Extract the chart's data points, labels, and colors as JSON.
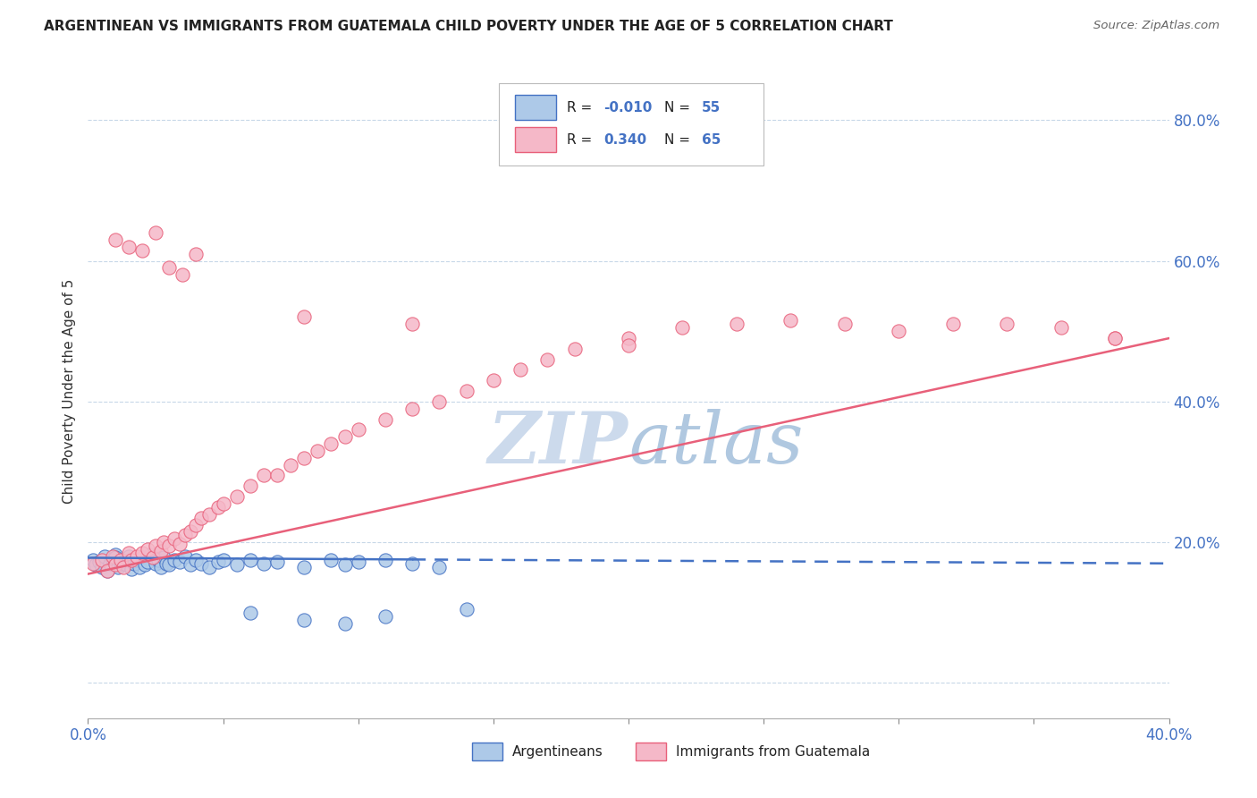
{
  "title": "ARGENTINEAN VS IMMIGRANTS FROM GUATEMALA CHILD POVERTY UNDER THE AGE OF 5 CORRELATION CHART",
  "source": "Source: ZipAtlas.com",
  "ylabel": "Child Poverty Under the Age of 5",
  "xlim": [
    0.0,
    0.4
  ],
  "ylim": [
    -0.05,
    0.88
  ],
  "color_blue": "#adc9e8",
  "color_pink": "#f5b8c8",
  "line_color_blue": "#4472c4",
  "line_color_pink": "#e8607a",
  "watermark_color": "#ccdaec",
  "blue_x": [
    0.002,
    0.003,
    0.004,
    0.005,
    0.006,
    0.007,
    0.008,
    0.009,
    0.01,
    0.01,
    0.011,
    0.012,
    0.013,
    0.014,
    0.015,
    0.015,
    0.016,
    0.017,
    0.018,
    0.019,
    0.02,
    0.021,
    0.022,
    0.023,
    0.025,
    0.026,
    0.027,
    0.028,
    0.029,
    0.03,
    0.032,
    0.034,
    0.036,
    0.038,
    0.04,
    0.042,
    0.045,
    0.048,
    0.05,
    0.055,
    0.06,
    0.065,
    0.07,
    0.08,
    0.09,
    0.095,
    0.1,
    0.11,
    0.12,
    0.13,
    0.06,
    0.08,
    0.095,
    0.11,
    0.14
  ],
  "blue_y": [
    0.175,
    0.168,
    0.172,
    0.165,
    0.18,
    0.16,
    0.17,
    0.175,
    0.182,
    0.178,
    0.165,
    0.17,
    0.172,
    0.168,
    0.175,
    0.18,
    0.162,
    0.17,
    0.175,
    0.165,
    0.178,
    0.168,
    0.172,
    0.182,
    0.17,
    0.175,
    0.165,
    0.178,
    0.17,
    0.168,
    0.175,
    0.172,
    0.18,
    0.168,
    0.175,
    0.17,
    0.165,
    0.172,
    0.175,
    0.168,
    0.175,
    0.17,
    0.172,
    0.165,
    0.175,
    0.168,
    0.172,
    0.175,
    0.17,
    0.165,
    0.1,
    0.09,
    0.085,
    0.095,
    0.105
  ],
  "pink_x": [
    0.002,
    0.005,
    0.007,
    0.009,
    0.01,
    0.012,
    0.013,
    0.015,
    0.016,
    0.018,
    0.02,
    0.022,
    0.024,
    0.025,
    0.027,
    0.028,
    0.03,
    0.032,
    0.034,
    0.036,
    0.038,
    0.04,
    0.042,
    0.045,
    0.048,
    0.05,
    0.055,
    0.06,
    0.065,
    0.07,
    0.075,
    0.08,
    0.085,
    0.09,
    0.095,
    0.1,
    0.11,
    0.12,
    0.13,
    0.14,
    0.15,
    0.16,
    0.17,
    0.18,
    0.2,
    0.22,
    0.24,
    0.26,
    0.28,
    0.3,
    0.32,
    0.34,
    0.36,
    0.38,
    0.01,
    0.015,
    0.02,
    0.025,
    0.03,
    0.035,
    0.04,
    0.08,
    0.12,
    0.2,
    0.38
  ],
  "pink_y": [
    0.17,
    0.175,
    0.16,
    0.18,
    0.168,
    0.175,
    0.165,
    0.185,
    0.175,
    0.18,
    0.185,
    0.19,
    0.178,
    0.195,
    0.188,
    0.2,
    0.195,
    0.205,
    0.198,
    0.21,
    0.215,
    0.225,
    0.235,
    0.24,
    0.25,
    0.255,
    0.265,
    0.28,
    0.295,
    0.295,
    0.31,
    0.32,
    0.33,
    0.34,
    0.35,
    0.36,
    0.375,
    0.39,
    0.4,
    0.415,
    0.43,
    0.445,
    0.46,
    0.475,
    0.49,
    0.505,
    0.51,
    0.515,
    0.51,
    0.5,
    0.51,
    0.51,
    0.505,
    0.49,
    0.63,
    0.62,
    0.615,
    0.64,
    0.59,
    0.58,
    0.61,
    0.52,
    0.51,
    0.48,
    0.49
  ],
  "blue_line_intercept": 0.178,
  "blue_line_slope": -0.02,
  "pink_line_x0": 0.0,
  "pink_line_y0": 0.155,
  "pink_line_x1": 0.4,
  "pink_line_y1": 0.49
}
